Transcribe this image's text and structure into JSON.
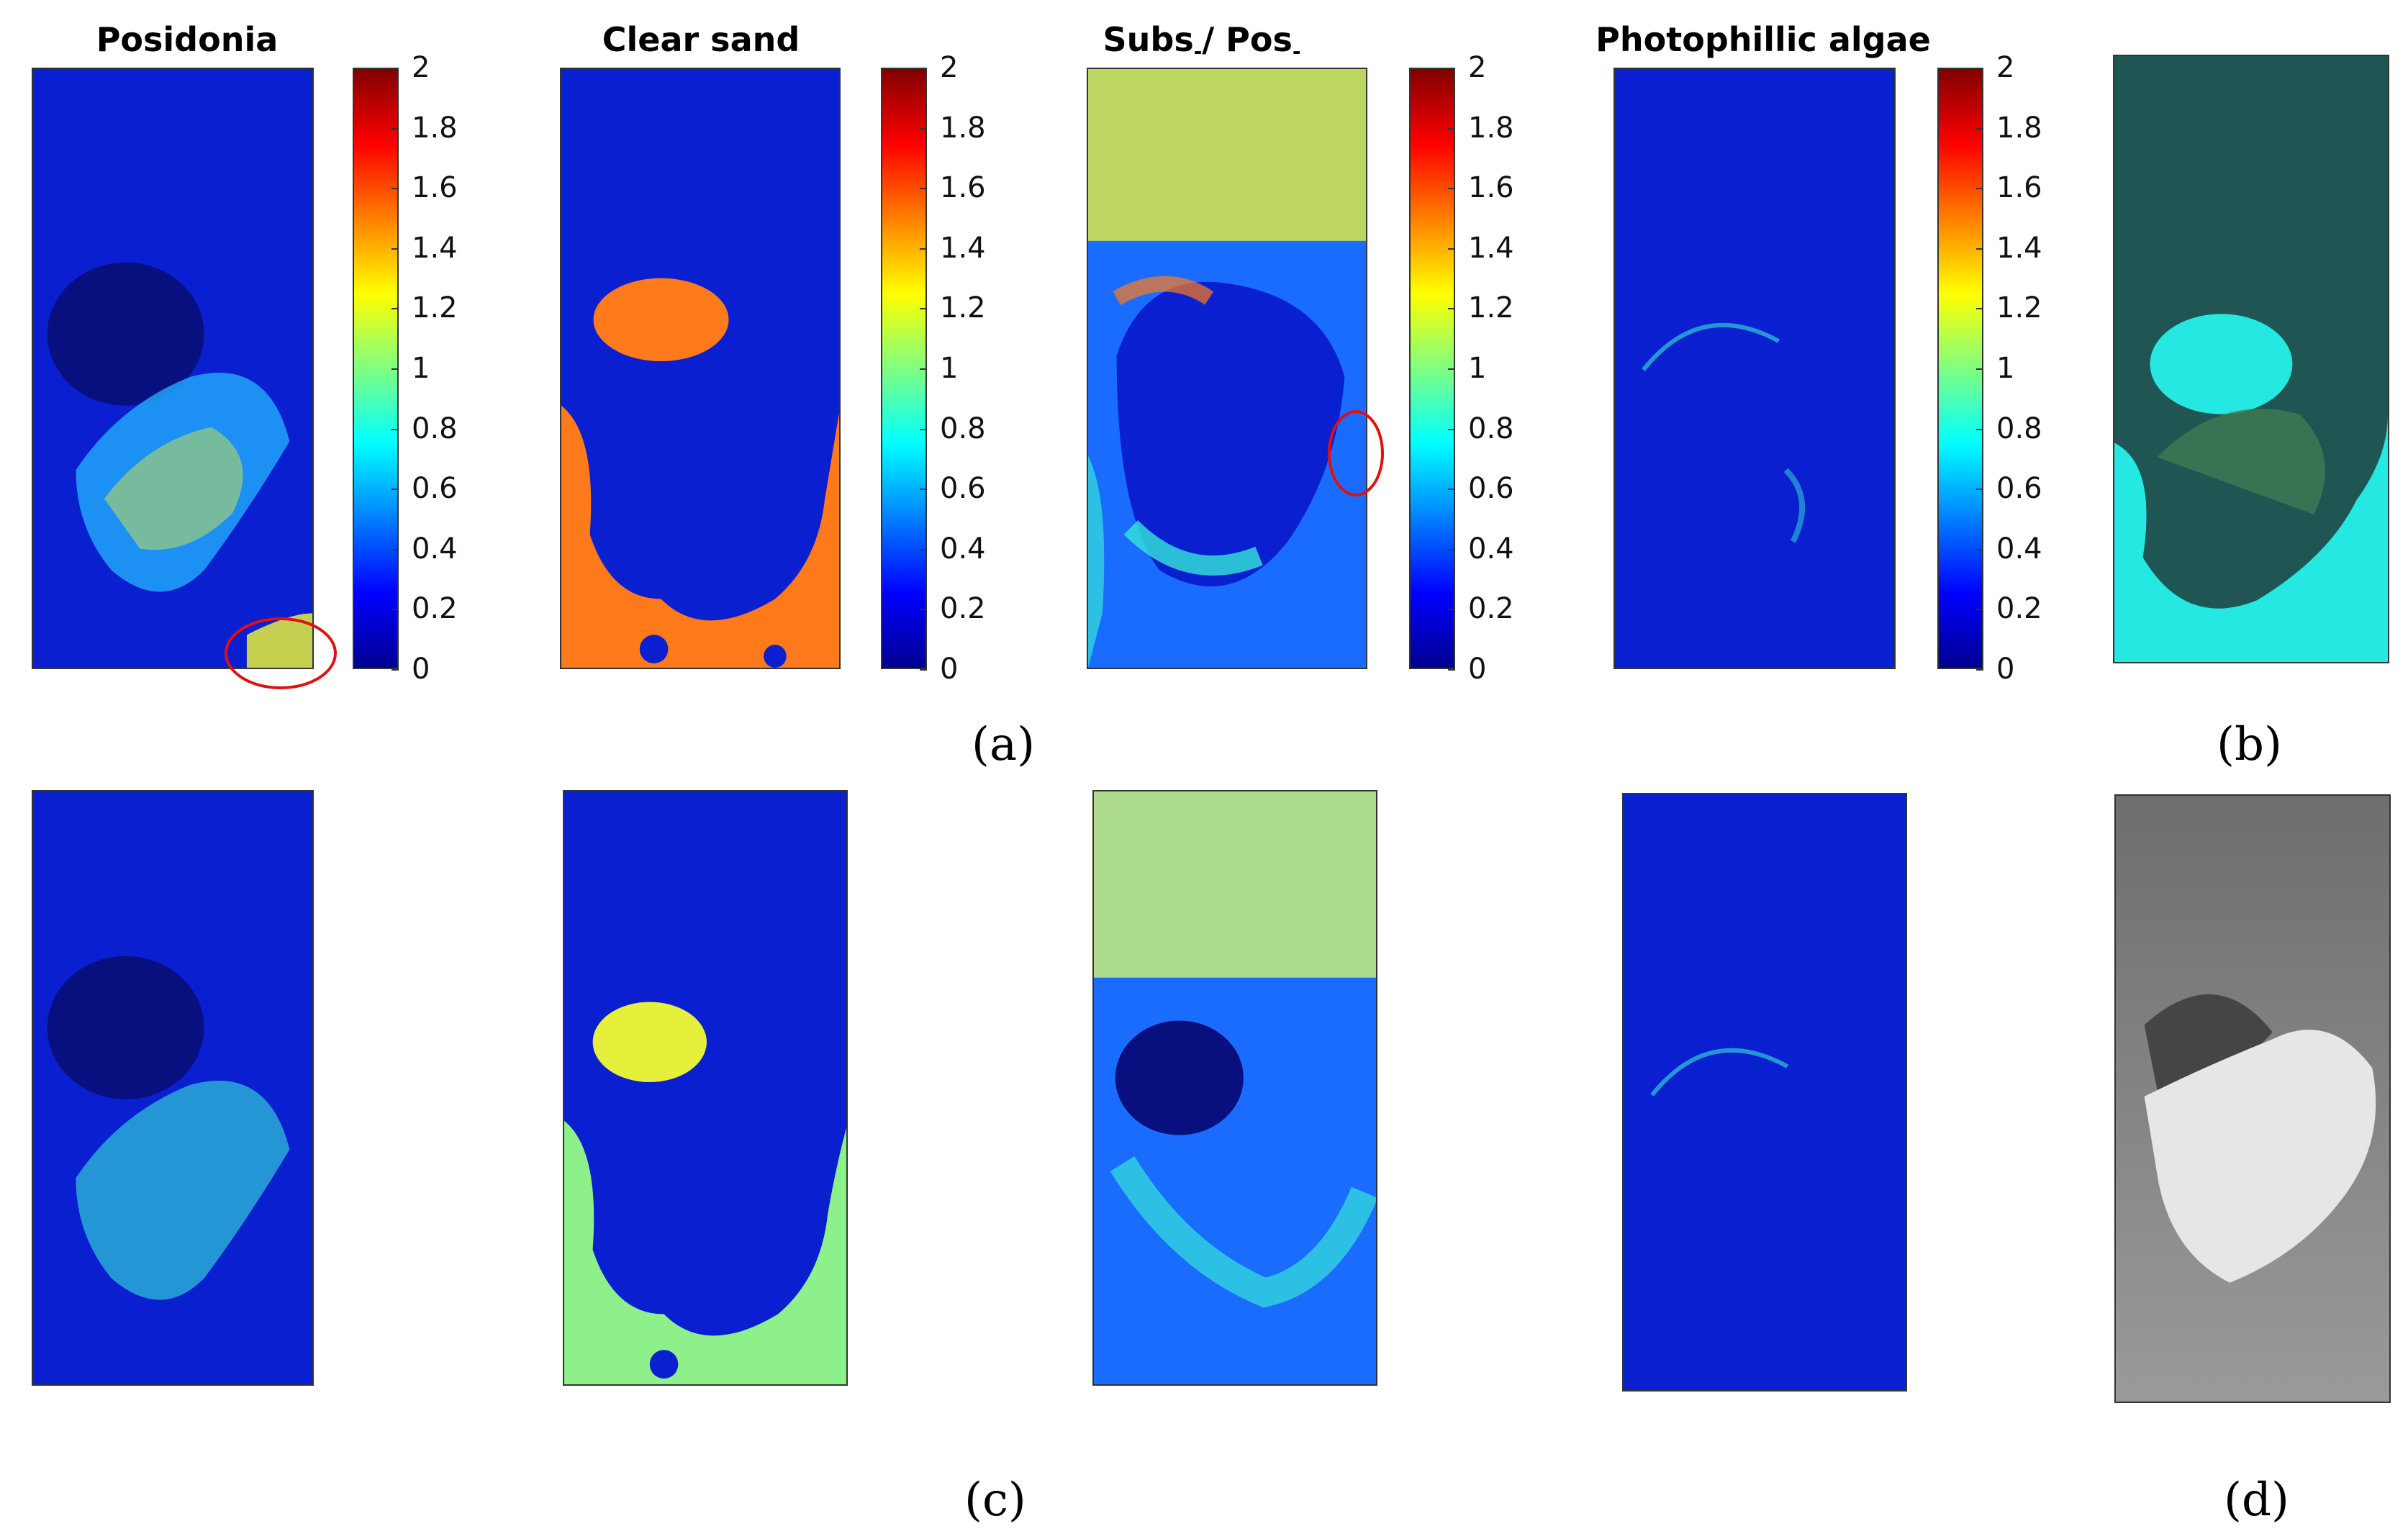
{
  "figure": {
    "titles": [
      {
        "a": "Posidonia"
      },
      {
        "a": "Clear sand"
      },
      {
        "a": "Subs",
        "sub1": "-",
        "mid": "/ Pos",
        "sub2": "-"
      },
      {
        "a": "Photophillic algae"
      }
    ],
    "colorbar_ticks": [
      "2",
      "1.8",
      "1.6",
      "1.4",
      "1.2",
      "1",
      "0.8",
      "0.6",
      "0.4",
      "0.2",
      "0"
    ],
    "labels": {
      "a": "(a)",
      "b": "(b)",
      "c": "(c)",
      "d": "(d)"
    },
    "colors": {
      "map_blue": "#0a1fd0",
      "map_dark_blue": "#081080",
      "sand_orange": "#ff7a1a",
      "highlight_cyan": "#35e6d8",
      "highlight_yellow": "#e6f03a",
      "rgb_cyan": "#25e8e2",
      "rgb_dark": "#1c4a48",
      "depth_light": "#e6e6e6",
      "depth_dark": "#454545",
      "circle_red": "#e01010"
    }
  }
}
